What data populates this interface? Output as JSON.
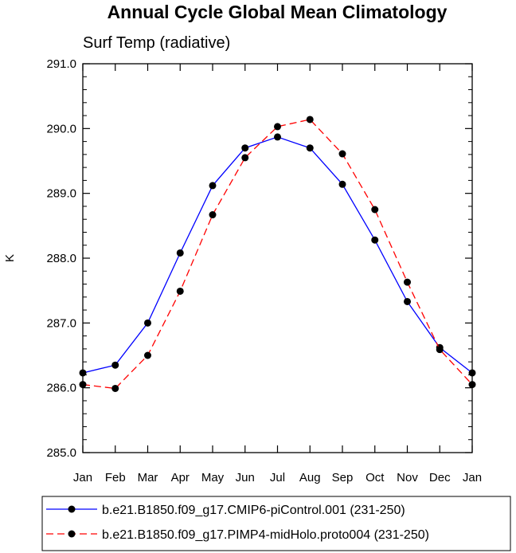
{
  "chart_data": {
    "type": "line",
    "title": "Annual Cycle Global Mean Climatology",
    "subtitle": "Surf Temp (radiative)",
    "xlabel": "",
    "ylabel": "K",
    "categories": [
      "Jan",
      "Feb",
      "Mar",
      "Apr",
      "May",
      "Jun",
      "Jul",
      "Aug",
      "Sep",
      "Oct",
      "Nov",
      "Dec",
      "Jan"
    ],
    "ylim": [
      285.0,
      291.0
    ],
    "yticks": [
      "285.0",
      "286.0",
      "287.0",
      "288.0",
      "289.0",
      "290.0",
      "291.0"
    ],
    "grid": false,
    "legend_position": "bottom",
    "series": [
      {
        "name": "b.e21.B1850.f09_g17.CMIP6-piControl.001 (231-250)",
        "color": "#0000ff",
        "dash": "solid",
        "values": [
          286.23,
          286.35,
          287.0,
          288.08,
          289.12,
          289.7,
          289.87,
          289.7,
          289.14,
          288.28,
          287.33,
          286.62,
          286.23
        ]
      },
      {
        "name": "b.e21.B1850.f09_g17.PIMP4-midHolo.proto004 (231-250)",
        "color": "#ff0000",
        "dash": "dashed",
        "values": [
          286.05,
          285.99,
          286.5,
          287.49,
          288.67,
          289.55,
          290.03,
          290.14,
          289.61,
          288.75,
          287.63,
          286.59,
          286.05
        ]
      }
    ]
  }
}
